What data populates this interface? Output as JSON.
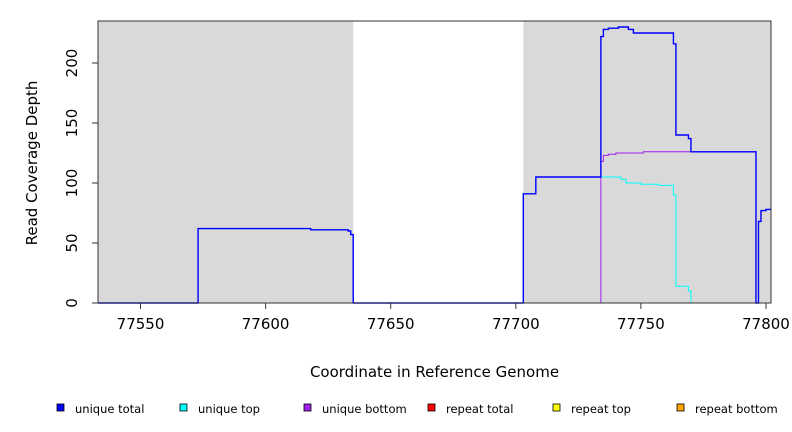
{
  "chart_data": {
    "type": "line",
    "title": "",
    "xlabel": "Coordinate in Reference Genome",
    "ylabel": "Read Coverage Depth",
    "xlim": [
      77533,
      77802
    ],
    "ylim": [
      0,
      235
    ],
    "xticks": [
      77550,
      77600,
      77650,
      77700,
      77750,
      77800
    ],
    "yticks": [
      0,
      50,
      100,
      150,
      200
    ],
    "grid": false,
    "background": "#d9d9d9",
    "shaded_regions": [
      {
        "x0": 77533,
        "x1": 77635,
        "color": "#d9d9d9"
      },
      {
        "x0": 77703,
        "x1": 77802,
        "color": "#d9d9d9"
      }
    ],
    "legend_position": "bottom",
    "legend": [
      {
        "label": "unique total",
        "color": "#0000ff"
      },
      {
        "label": "unique top",
        "color": "#00ffff"
      },
      {
        "label": "unique bottom",
        "color": "#a020f0"
      },
      {
        "label": "repeat total",
        "color": "#ff0000"
      },
      {
        "label": "repeat top",
        "color": "#ffff00"
      },
      {
        "label": "repeat bottom",
        "color": "#ffa500"
      }
    ],
    "series": [
      {
        "key": "unique_top",
        "color": "#00ffff",
        "width": 1,
        "step": true,
        "points": [
          [
            77533,
            0
          ],
          [
            77573,
            0
          ],
          [
            77573,
            62
          ],
          [
            77618,
            62
          ],
          [
            77618,
            61
          ],
          [
            77633,
            61
          ],
          [
            77633,
            60
          ],
          [
            77634,
            60
          ],
          [
            77634,
            57
          ],
          [
            77635,
            57
          ],
          [
            77635,
            0
          ],
          [
            77703,
            0
          ],
          [
            77703,
            91
          ],
          [
            77708,
            91
          ],
          [
            77708,
            105
          ],
          [
            77742,
            105
          ],
          [
            77742,
            103
          ],
          [
            77744,
            103
          ],
          [
            77744,
            100
          ],
          [
            77750,
            100
          ],
          [
            77750,
            99
          ],
          [
            77757,
            99
          ],
          [
            77757,
            98
          ],
          [
            77763,
            98
          ],
          [
            77763,
            90
          ],
          [
            77764,
            90
          ],
          [
            77764,
            14
          ],
          [
            77769,
            14
          ],
          [
            77769,
            10
          ],
          [
            77770,
            10
          ],
          [
            77770,
            0
          ],
          [
            77795,
            0
          ]
        ]
      },
      {
        "key": "unique_bottom",
        "color": "#a020f0",
        "width": 1,
        "step": true,
        "points": [
          [
            77734,
            0
          ],
          [
            77734,
            118
          ],
          [
            77735,
            118
          ],
          [
            77735,
            123
          ],
          [
            77737,
            123
          ],
          [
            77737,
            124
          ],
          [
            77740,
            124
          ],
          [
            77740,
            125
          ],
          [
            77751,
            125
          ],
          [
            77751,
            126
          ],
          [
            77796,
            126
          ],
          [
            77796,
            0
          ],
          [
            77797,
            0
          ],
          [
            77797,
            68
          ],
          [
            77798,
            68
          ],
          [
            77798,
            77
          ],
          [
            77800,
            77
          ],
          [
            77800,
            78
          ],
          [
            77802,
            78
          ]
        ]
      },
      {
        "key": "unique_total",
        "color": "#0000ff",
        "width": 1.4,
        "step": true,
        "points": [
          [
            77533,
            0
          ],
          [
            77573,
            0
          ],
          [
            77573,
            62
          ],
          [
            77618,
            62
          ],
          [
            77618,
            61
          ],
          [
            77633,
            61
          ],
          [
            77633,
            60
          ],
          [
            77634,
            60
          ],
          [
            77634,
            57
          ],
          [
            77635,
            57
          ],
          [
            77635,
            0
          ],
          [
            77703,
            0
          ],
          [
            77703,
            91
          ],
          [
            77708,
            91
          ],
          [
            77708,
            105
          ],
          [
            77734,
            105
          ],
          [
            77734,
            222
          ],
          [
            77735,
            222
          ],
          [
            77735,
            228
          ],
          [
            77737,
            228
          ],
          [
            77737,
            229
          ],
          [
            77741,
            229
          ],
          [
            77741,
            230
          ],
          [
            77745,
            230
          ],
          [
            77745,
            228
          ],
          [
            77747,
            228
          ],
          [
            77747,
            225
          ],
          [
            77763,
            225
          ],
          [
            77763,
            216
          ],
          [
            77764,
            216
          ],
          [
            77764,
            140
          ],
          [
            77769,
            140
          ],
          [
            77769,
            137
          ],
          [
            77770,
            137
          ],
          [
            77770,
            126
          ],
          [
            77796,
            126
          ],
          [
            77796,
            0
          ],
          [
            77797,
            0
          ],
          [
            77797,
            68
          ],
          [
            77798,
            68
          ],
          [
            77798,
            77
          ],
          [
            77800,
            77
          ],
          [
            77800,
            78
          ],
          [
            77802,
            78
          ]
        ]
      },
      {
        "key": "repeat_total",
        "color": "#ff0000",
        "width": 1,
        "step": true,
        "points": [
          [
            77533,
            0
          ],
          [
            77734,
            0
          ]
        ]
      },
      {
        "key": "repeat_bottom",
        "color": "#ffa500",
        "width": 1,
        "step": true,
        "points": [
          [
            77734,
            0
          ],
          [
            77770,
            0
          ]
        ]
      }
    ]
  }
}
